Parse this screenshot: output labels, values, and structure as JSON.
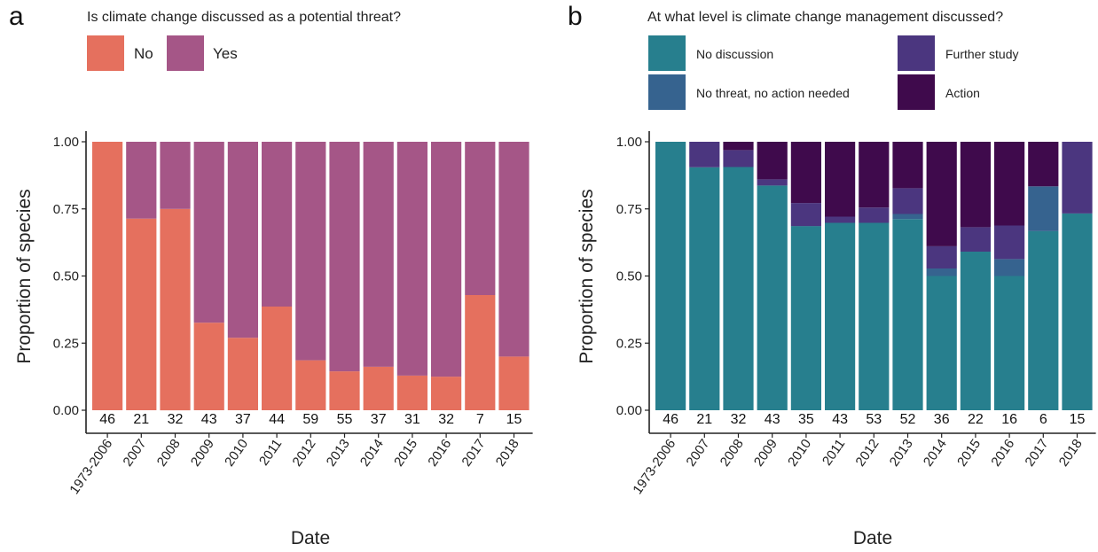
{
  "colors": {
    "no": "#E5705E",
    "yes": "#A55687",
    "no_discussion": "#277F8E",
    "no_threat": "#36638F",
    "further_study": "#4B367F",
    "action": "#3F0A4C"
  },
  "chart_data": [
    {
      "panel": "a",
      "type": "bar",
      "stacked": true,
      "title": "Is climate change discussed as a potential threat?",
      "xlabel": "Date",
      "ylabel": "Proportion of species",
      "ylim": [
        0,
        1
      ],
      "yticks": [
        "0.00",
        "0.25",
        "0.50",
        "0.75",
        "1.00"
      ],
      "legend_position": "top",
      "grid": false,
      "categories": [
        "1973-2006",
        "2007",
        "2008",
        "2009",
        "2010",
        "2011",
        "2012",
        "2013",
        "2014",
        "2015",
        "2016",
        "2017",
        "2018"
      ],
      "counts": [
        "46",
        "21",
        "32",
        "43",
        "37",
        "44",
        "59",
        "55",
        "37",
        "31",
        "32",
        "7",
        "15"
      ],
      "series": [
        {
          "name": "No",
          "color": "#E5705E",
          "values": [
            1.0,
            0.714,
            0.75,
            0.326,
            0.27,
            0.386,
            0.186,
            0.145,
            0.162,
            0.129,
            0.125,
            0.429,
            0.2
          ]
        },
        {
          "name": "Yes",
          "color": "#A55687",
          "values": [
            0.0,
            0.286,
            0.25,
            0.674,
            0.73,
            0.614,
            0.814,
            0.855,
            0.838,
            0.871,
            0.875,
            0.571,
            0.8
          ]
        }
      ]
    },
    {
      "panel": "b",
      "type": "bar",
      "stacked": true,
      "title": "At what level is climate change management discussed?",
      "xlabel": "Date",
      "ylabel": "Proportion of species",
      "ylim": [
        0,
        1
      ],
      "yticks": [
        "0.00",
        "0.25",
        "0.50",
        "0.75",
        "1.00"
      ],
      "legend_position": "top",
      "grid": false,
      "categories": [
        "1973-2006",
        "2007",
        "2008",
        "2009",
        "2010",
        "2011",
        "2012",
        "2013",
        "2014",
        "2015",
        "2016",
        "2017",
        "2018"
      ],
      "counts": [
        "46",
        "21",
        "32",
        "43",
        "35",
        "43",
        "53",
        "52",
        "36",
        "22",
        "16",
        "6",
        "15"
      ],
      "series": [
        {
          "name": "No discussion",
          "color": "#277F8E",
          "values": [
            1.0,
            0.905,
            0.906,
            0.837,
            0.686,
            0.698,
            0.698,
            0.712,
            0.5,
            0.591,
            0.5,
            0.667,
            0.733
          ]
        },
        {
          "name": "No threat, no action needed",
          "color": "#36638F",
          "values": [
            0.0,
            0.0,
            0.0,
            0.0,
            0.0,
            0.0,
            0.0,
            0.019,
            0.028,
            0.0,
            0.063,
            0.167,
            0.0
          ]
        },
        {
          "name": "Further study",
          "color": "#4B367F",
          "values": [
            0.0,
            0.095,
            0.063,
            0.023,
            0.086,
            0.023,
            0.057,
            0.096,
            0.083,
            0.091,
            0.125,
            0.0,
            0.267
          ]
        },
        {
          "name": "Action",
          "color": "#3F0A4C",
          "values": [
            0.0,
            0.0,
            0.031,
            0.14,
            0.228,
            0.279,
            0.245,
            0.173,
            0.389,
            0.318,
            0.312,
            0.166,
            0.0
          ]
        }
      ]
    }
  ]
}
